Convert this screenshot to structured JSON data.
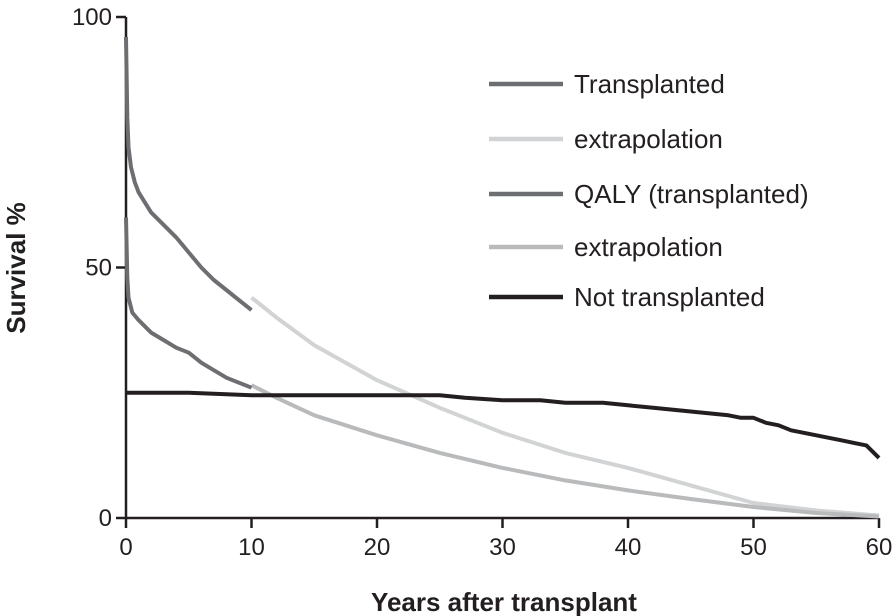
{
  "chart_data": {
    "type": "line",
    "title": "",
    "xlabel": "Years after transplant",
    "ylabel": "Survival %",
    "xlim": [
      0,
      60
    ],
    "ylim": [
      0,
      100
    ],
    "x_ticks": [
      0,
      10,
      20,
      30,
      40,
      50,
      60
    ],
    "x_tick_labels": [
      "0",
      "10",
      "20",
      "30",
      "40",
      "50",
      "60"
    ],
    "y_ticks": [
      0,
      50,
      100
    ],
    "y_tick_labels": [
      "0",
      "50",
      "100"
    ],
    "grid": false,
    "legend_position": "top-right",
    "series": [
      {
        "name": "Transplanted",
        "color": "#6d6e71",
        "x": [
          0,
          0.1,
          0.2,
          0.4,
          0.7,
          1,
          2,
          3,
          4,
          5,
          6,
          7,
          8,
          9,
          10
        ],
        "y": [
          96,
          80,
          74,
          70,
          67,
          65,
          61,
          58.5,
          56,
          53,
          50,
          47.5,
          45.5,
          43.5,
          41.5
        ]
      },
      {
        "name": "extrapolation",
        "color": "#d1d3d4",
        "x": [
          10,
          12,
          15,
          20,
          25,
          30,
          35,
          40,
          45,
          50,
          55,
          60
        ],
        "y": [
          44,
          40,
          34.5,
          27.5,
          22,
          17,
          13,
          10,
          6.5,
          3,
          1.5,
          0.5
        ]
      },
      {
        "name": "QALY (transplanted)",
        "color": "#6d6e71",
        "x": [
          0,
          0.1,
          0.2,
          0.5,
          1,
          2,
          3,
          4,
          5,
          6,
          7,
          8,
          9,
          10
        ],
        "y": [
          60,
          48,
          44,
          41,
          39.5,
          37,
          35.5,
          34,
          33,
          31,
          29.5,
          28,
          27,
          26
        ]
      },
      {
        "name": "extrapolation",
        "color": "#b9babc",
        "x": [
          10,
          12,
          15,
          20,
          25,
          30,
          35,
          40,
          45,
          50,
          55,
          60
        ],
        "y": [
          26.5,
          24,
          20.5,
          16.5,
          13,
          10,
          7.5,
          5.5,
          3.8,
          2.2,
          1,
          0.3
        ]
      },
      {
        "name": "Not transplanted",
        "color": "#231f20",
        "x": [
          0,
          5,
          10,
          15,
          20,
          25,
          27,
          30,
          33,
          35,
          37,
          38,
          40,
          42,
          44,
          46,
          48,
          49,
          50,
          51,
          52,
          53,
          54,
          55,
          56,
          57,
          58,
          59,
          60
        ],
        "y": [
          25,
          25,
          24.5,
          24.5,
          24.5,
          24.5,
          24,
          23.5,
          23.5,
          23,
          23,
          23,
          22.5,
          22,
          21.5,
          21,
          20.5,
          20,
          20,
          19,
          18.5,
          17.5,
          17,
          16.5,
          16,
          15.5,
          15,
          14.5,
          12
        ]
      }
    ]
  }
}
